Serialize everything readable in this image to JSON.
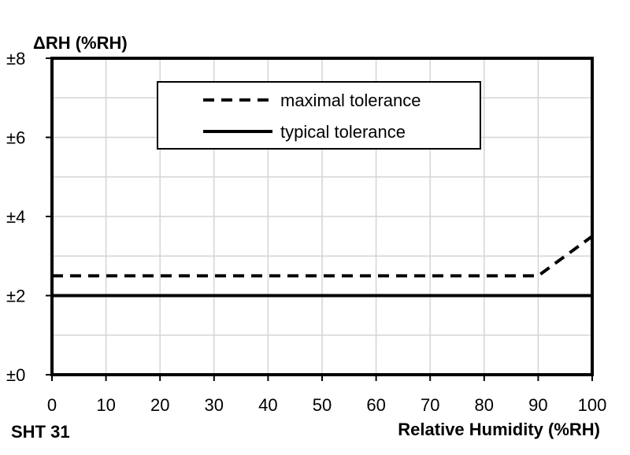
{
  "chart_data": {
    "type": "line",
    "ylabel": "ΔRH (%RH)",
    "xlabel": "Relative Humidity (%RH)",
    "model_label": "SHT 31",
    "xlim": [
      0,
      100
    ],
    "ylim": [
      0,
      8
    ],
    "x_ticks": [
      0,
      10,
      20,
      30,
      40,
      50,
      60,
      70,
      80,
      90,
      100
    ],
    "x_tick_labels": [
      "0",
      "10",
      "20",
      "30",
      "40",
      "50",
      "60",
      "70",
      "80",
      "90",
      "100"
    ],
    "y_ticks": [
      0,
      2,
      4,
      6,
      8
    ],
    "y_tick_labels": [
      "±0",
      "±2",
      "±4",
      "±6",
      "±8"
    ],
    "grid": true,
    "legend_position": "top-center",
    "series": [
      {
        "name": "maximal tolerance",
        "style": "dashed",
        "color": "#000000",
        "x": [
          0,
          90,
          100
        ],
        "y": [
          2.5,
          2.5,
          3.5
        ]
      },
      {
        "name": "typical tolerance",
        "style": "solid",
        "color": "#000000",
        "x": [
          0,
          100
        ],
        "y": [
          2,
          2
        ]
      }
    ]
  }
}
